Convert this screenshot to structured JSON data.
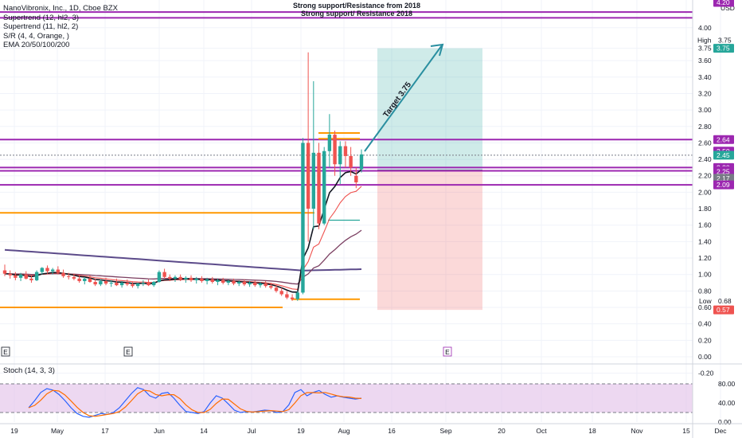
{
  "legend": {
    "title": "NanoVibronix, Inc., 1D, Cboe BZX",
    "indicators": [
      "Supertrend (12, hl2, 3)",
      "Supertrend (11, hl2, 2)",
      "S/R (4, 4, Orange, )",
      "EMA 20/50/100/200"
    ]
  },
  "annotations": {
    "resistance_top": "Strong support/Resistance from 2018",
    "resistance_second": "Strong support/ Resistance 2018",
    "target": "Target 3.75",
    "high_label": "High",
    "low_label": "Low",
    "earnings_marker": "E",
    "currency": "USD"
  },
  "chart_data": {
    "type": "candlestick",
    "symbol": "NanoVibronix, Inc.",
    "interval": "1D",
    "exchange": "Cboe BZX",
    "ylim": [
      -0.1,
      4.2
    ],
    "y_ticks": [
      "4.00",
      "3.75",
      "3.60",
      "3.40",
      "3.20",
      "3.00",
      "2.80",
      "2.60",
      "2.40",
      "2.20",
      "2.00",
      "1.80",
      "1.60",
      "1.40",
      "1.20",
      "1.00",
      "0.80",
      "0.60",
      "0.40",
      "0.20",
      "0.00",
      "-0.20"
    ],
    "x_ticks": [
      "19",
      "May",
      "17",
      "Jun",
      "14",
      "Jul",
      "19",
      "Aug",
      "16",
      "Sep",
      "20",
      "Oct",
      "18",
      "Nov",
      "15",
      "Dec"
    ],
    "price_tags": [
      {
        "value": "4.20",
        "color": "#9c27b0"
      },
      {
        "value": "3.75",
        "color": "#26a69a"
      },
      {
        "value": "2.64",
        "color": "#9c27b0"
      },
      {
        "value": "2.50",
        "color": "#9c27b0"
      },
      {
        "value": "2.45",
        "color": "#26a69a"
      },
      {
        "value": "2.30",
        "color": "#9c27b0"
      },
      {
        "value": "2.26",
        "color": "#9c27b0"
      },
      {
        "value": "2.25",
        "color": "#9c27b0"
      },
      {
        "value": "2.17",
        "color": "#787b86"
      },
      {
        "value": "2.09",
        "color": "#9c27b0"
      },
      {
        "value": "0.57",
        "color": "#ef5350"
      }
    ],
    "high_value": "3.75",
    "low_value": "0.68",
    "horizontal_levels": [
      {
        "kind": "purple",
        "price": 4.12
      },
      {
        "kind": "purple",
        "price": 4.19
      },
      {
        "kind": "purple",
        "price": 2.64
      },
      {
        "kind": "purple",
        "price": 2.3
      },
      {
        "kind": "purple",
        "price": 2.26
      },
      {
        "kind": "purple",
        "price": 2.09
      },
      {
        "kind": "orange",
        "price": 1.75
      },
      {
        "kind": "orange",
        "price": 0.6
      },
      {
        "kind": "orange",
        "price": 0.7
      },
      {
        "kind": "orange",
        "price": 2.72
      },
      {
        "kind": "orange",
        "price": 2.65
      },
      {
        "kind": "teal",
        "price": 1.66
      }
    ],
    "position": {
      "entry": 2.27,
      "target": 3.75,
      "stop": 0.57
    },
    "candles": [
      {
        "o": 1.05,
        "h": 1.12,
        "l": 0.98,
        "c": 1.01
      },
      {
        "o": 1.01,
        "h": 1.05,
        "l": 0.95,
        "c": 0.99
      },
      {
        "o": 0.99,
        "h": 1.03,
        "l": 0.93,
        "c": 0.96
      },
      {
        "o": 0.96,
        "h": 1.02,
        "l": 0.92,
        "c": 1.0
      },
      {
        "o": 1.0,
        "h": 1.04,
        "l": 0.94,
        "c": 0.95
      },
      {
        "o": 0.95,
        "h": 0.99,
        "l": 0.9,
        "c": 0.93
      },
      {
        "o": 0.93,
        "h": 1.05,
        "l": 0.92,
        "c": 1.03
      },
      {
        "o": 1.03,
        "h": 1.09,
        "l": 1.0,
        "c": 1.08
      },
      {
        "o": 1.08,
        "h": 1.11,
        "l": 1.01,
        "c": 1.04
      },
      {
        "o": 1.04,
        "h": 1.08,
        "l": 1.0,
        "c": 1.06
      },
      {
        "o": 1.06,
        "h": 1.1,
        "l": 1.0,
        "c": 1.02
      },
      {
        "o": 1.02,
        "h": 1.06,
        "l": 0.96,
        "c": 0.98
      },
      {
        "o": 0.98,
        "h": 1.02,
        "l": 0.94,
        "c": 0.97
      },
      {
        "o": 0.97,
        "h": 1.01,
        "l": 0.93,
        "c": 0.95
      },
      {
        "o": 0.95,
        "h": 1.0,
        "l": 0.9,
        "c": 0.92
      },
      {
        "o": 0.92,
        "h": 0.97,
        "l": 0.88,
        "c": 0.95
      },
      {
        "o": 0.95,
        "h": 0.99,
        "l": 0.9,
        "c": 0.91
      },
      {
        "o": 0.91,
        "h": 0.95,
        "l": 0.86,
        "c": 0.88
      },
      {
        "o": 0.88,
        "h": 0.94,
        "l": 0.86,
        "c": 0.92
      },
      {
        "o": 0.92,
        "h": 0.96,
        "l": 0.87,
        "c": 0.89
      },
      {
        "o": 0.89,
        "h": 0.93,
        "l": 0.85,
        "c": 0.9
      },
      {
        "o": 0.9,
        "h": 0.95,
        "l": 0.86,
        "c": 0.87
      },
      {
        "o": 0.87,
        "h": 0.92,
        "l": 0.84,
        "c": 0.9
      },
      {
        "o": 0.9,
        "h": 0.94,
        "l": 0.86,
        "c": 0.88
      },
      {
        "o": 0.88,
        "h": 0.91,
        "l": 0.84,
        "c": 0.86
      },
      {
        "o": 0.86,
        "h": 0.9,
        "l": 0.83,
        "c": 0.89
      },
      {
        "o": 0.89,
        "h": 0.93,
        "l": 0.86,
        "c": 0.9
      },
      {
        "o": 0.9,
        "h": 0.94,
        "l": 0.86,
        "c": 0.87
      },
      {
        "o": 0.87,
        "h": 0.92,
        "l": 0.85,
        "c": 0.91
      },
      {
        "o": 0.91,
        "h": 1.05,
        "l": 0.9,
        "c": 1.03
      },
      {
        "o": 1.03,
        "h": 1.07,
        "l": 0.95,
        "c": 0.97
      },
      {
        "o": 0.97,
        "h": 1.0,
        "l": 0.92,
        "c": 0.95
      },
      {
        "o": 0.95,
        "h": 0.99,
        "l": 0.91,
        "c": 0.97
      },
      {
        "o": 0.97,
        "h": 1.0,
        "l": 0.92,
        "c": 0.94
      },
      {
        "o": 0.94,
        "h": 0.98,
        "l": 0.9,
        "c": 0.96
      },
      {
        "o": 0.96,
        "h": 0.99,
        "l": 0.91,
        "c": 0.93
      },
      {
        "o": 0.93,
        "h": 0.97,
        "l": 0.89,
        "c": 0.95
      },
      {
        "o": 0.95,
        "h": 0.98,
        "l": 0.9,
        "c": 0.92
      },
      {
        "o": 0.92,
        "h": 0.96,
        "l": 0.88,
        "c": 0.94
      },
      {
        "o": 0.94,
        "h": 0.97,
        "l": 0.89,
        "c": 0.91
      },
      {
        "o": 0.91,
        "h": 0.95,
        "l": 0.87,
        "c": 0.93
      },
      {
        "o": 0.93,
        "h": 0.96,
        "l": 0.88,
        "c": 0.9
      },
      {
        "o": 0.9,
        "h": 0.94,
        "l": 0.87,
        "c": 0.92
      },
      {
        "o": 0.92,
        "h": 0.95,
        "l": 0.87,
        "c": 0.89
      },
      {
        "o": 0.89,
        "h": 0.93,
        "l": 0.86,
        "c": 0.91
      },
      {
        "o": 0.91,
        "h": 0.94,
        "l": 0.86,
        "c": 0.88
      },
      {
        "o": 0.88,
        "h": 0.92,
        "l": 0.85,
        "c": 0.9
      },
      {
        "o": 0.9,
        "h": 0.93,
        "l": 0.85,
        "c": 0.87
      },
      {
        "o": 0.87,
        "h": 0.91,
        "l": 0.84,
        "c": 0.89
      },
      {
        "o": 0.89,
        "h": 0.92,
        "l": 0.84,
        "c": 0.86
      },
      {
        "o": 0.86,
        "h": 0.9,
        "l": 0.82,
        "c": 0.84
      },
      {
        "o": 0.84,
        "h": 0.88,
        "l": 0.78,
        "c": 0.8
      },
      {
        "o": 0.8,
        "h": 0.84,
        "l": 0.74,
        "c": 0.76
      },
      {
        "o": 0.76,
        "h": 0.8,
        "l": 0.7,
        "c": 0.72
      },
      {
        "o": 0.72,
        "h": 0.76,
        "l": 0.68,
        "c": 0.7
      },
      {
        "o": 0.7,
        "h": 0.8,
        "l": 0.68,
        "c": 0.78
      },
      {
        "o": 0.78,
        "h": 2.66,
        "l": 0.76,
        "c": 2.6
      },
      {
        "o": 2.6,
        "h": 3.7,
        "l": 1.4,
        "c": 1.8
      },
      {
        "o": 1.8,
        "h": 3.35,
        "l": 1.55,
        "c": 2.48
      },
      {
        "o": 2.48,
        "h": 2.6,
        "l": 1.55,
        "c": 1.62
      },
      {
        "o": 1.62,
        "h": 2.55,
        "l": 1.6,
        "c": 2.5
      },
      {
        "o": 2.5,
        "h": 2.95,
        "l": 2.3,
        "c": 2.7
      },
      {
        "o": 2.7,
        "h": 2.75,
        "l": 2.2,
        "c": 2.34
      },
      {
        "o": 2.34,
        "h": 2.62,
        "l": 2.1,
        "c": 2.56
      },
      {
        "o": 2.56,
        "h": 2.62,
        "l": 2.3,
        "c": 2.44
      },
      {
        "o": 2.44,
        "h": 2.55,
        "l": 2.2,
        "c": 2.3
      },
      {
        "o": 2.2,
        "h": 2.3,
        "l": 2.05,
        "c": 2.12
      },
      {
        "o": 2.28,
        "h": 2.52,
        "l": 2.24,
        "c": 2.46
      }
    ],
    "stochastic": {
      "name": "Stoch (14, 3, 3)",
      "ylim": [
        0,
        100
      ],
      "y_ticks": [
        "80.00",
        "40.00",
        "0.00"
      ],
      "upper_band": 80,
      "lower_band": 20
    }
  }
}
